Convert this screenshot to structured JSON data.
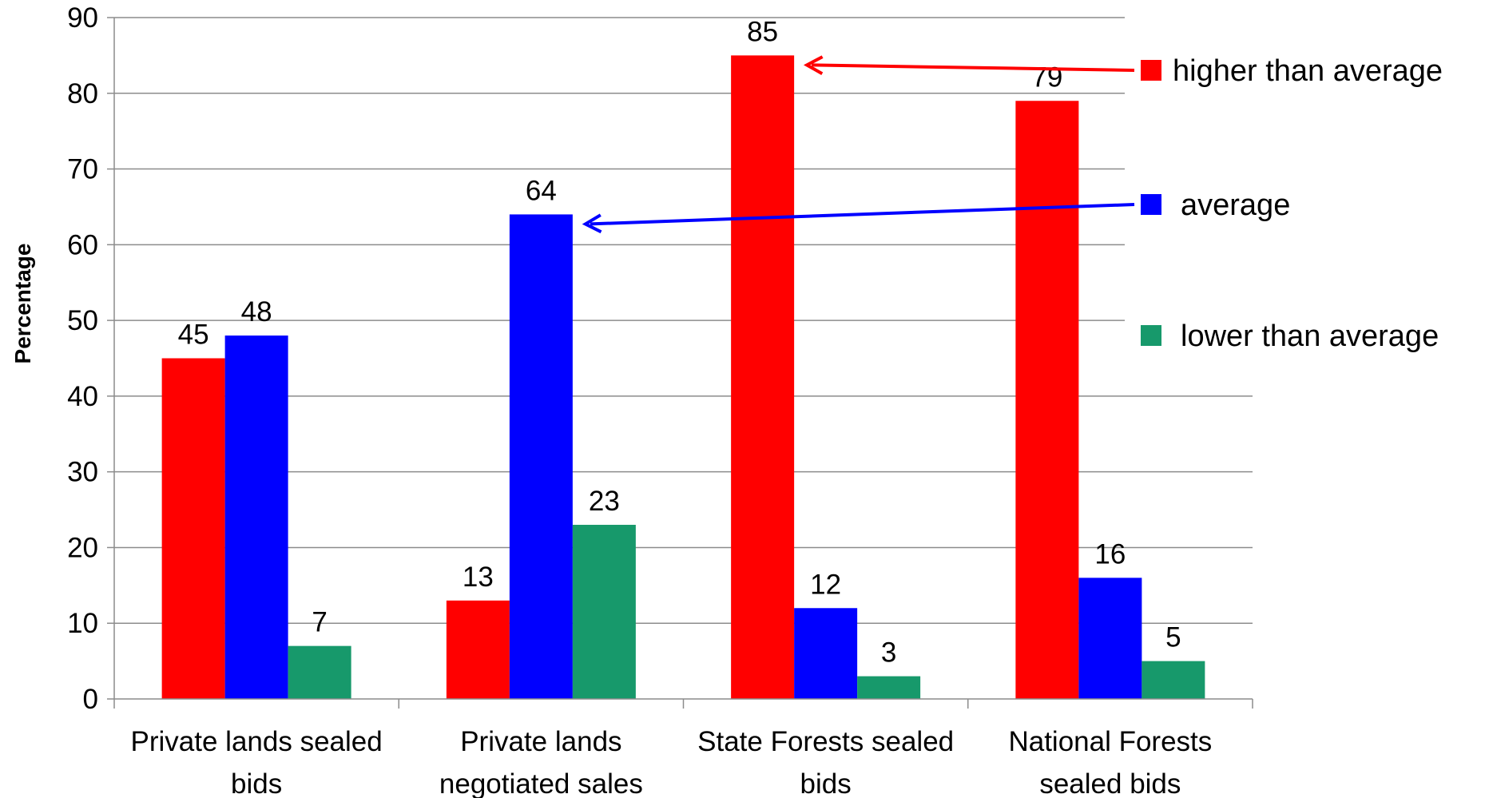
{
  "chart_data": {
    "type": "bar",
    "title": "",
    "xlabel": "",
    "ylabel": "Percentage",
    "ylim": [
      0,
      90
    ],
    "yticks": [
      "0",
      "10",
      "20",
      "30",
      "40",
      "50",
      "60",
      "70",
      "80",
      "90"
    ],
    "categories": [
      [
        "Private lands sealed",
        "bids"
      ],
      [
        "Private lands",
        "negotiated sales"
      ],
      [
        "State Forests sealed",
        "bids"
      ],
      [
        "National Forests",
        "sealed bids"
      ]
    ],
    "series": [
      {
        "name": "higher than average",
        "color": "#ff0000",
        "values": [
          45,
          13,
          85,
          79
        ]
      },
      {
        "name": "average",
        "color": "#0000ff",
        "values": [
          48,
          64,
          12,
          16
        ]
      },
      {
        "name": "lower than average",
        "color": "#17996b",
        "values": [
          7,
          23,
          3,
          5
        ]
      }
    ],
    "grid": true,
    "legend_position": "right",
    "annotations": [
      {
        "type": "arrow",
        "from_series": "higher than average",
        "to_category": 2,
        "value": 85,
        "color": "#ff0000"
      },
      {
        "type": "arrow",
        "from_series": "average",
        "to_category": 1,
        "value": 64,
        "color": "#0000ff"
      }
    ]
  }
}
